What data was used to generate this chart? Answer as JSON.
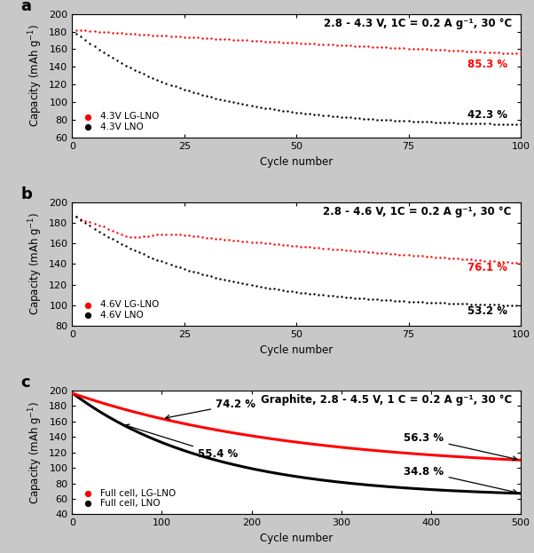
{
  "panel_a": {
    "title": "2.8 - 4.3 V, 1C = 0.2 A g⁻¹, 30 °C",
    "red_label": "4.3V LG-LNO",
    "black_label": "4.3V LNO",
    "red_start": 182,
    "red_end": 155,
    "black_start": 178,
    "black_end": 75,
    "red_pct": "85.3 %",
    "black_pct": "42.3 %",
    "cycles": 100,
    "ylim": [
      60,
      200
    ],
    "yticks": [
      60,
      80,
      100,
      120,
      140,
      160,
      180,
      200
    ],
    "xticks": [
      0,
      25,
      50,
      75,
      100
    ]
  },
  "panel_b": {
    "title": "2.8 - 4.6 V, 1C = 0.2 A g⁻¹, 30 °C",
    "red_label": "4.6V LG-LNO",
    "black_label": "4.6V LNO",
    "red_start": 186,
    "red_end": 141,
    "black_start": 186,
    "black_end": 100,
    "red_pct": "76.1 %",
    "black_pct": "53.2 %",
    "cycles": 100,
    "ylim": [
      80,
      200
    ],
    "yticks": [
      80,
      100,
      120,
      140,
      160,
      180,
      200
    ],
    "xticks": [
      0,
      25,
      50,
      75,
      100
    ]
  },
  "panel_c": {
    "title": "Graphite, 2.8 - 4.5 V, 1 C = 0.2 A g⁻¹, 30 °C",
    "red_label": "Full cell, LG-LNO",
    "black_label": "Full cell, LNO",
    "red_start": 196,
    "red_end": 110,
    "black_start": 196,
    "black_end": 67,
    "red_pct": "56.3 %",
    "black_pct": "34.8 %",
    "red_pct2": "74.2 %",
    "black_pct2": "55.4 %",
    "cycles": 500,
    "ylim": [
      40,
      200
    ],
    "yticks": [
      40,
      60,
      80,
      100,
      120,
      140,
      160,
      180,
      200
    ],
    "xticks": [
      0,
      100,
      200,
      300,
      400,
      500
    ]
  },
  "red_color": "#FF0000",
  "black_color": "#000000",
  "background_color": "#ffffff",
  "fig_background": "#c8c8c8",
  "panel_label_fontsize": 13,
  "title_fontsize": 8.5,
  "legend_fontsize": 7.5,
  "pct_fontsize": 8.5,
  "axis_label_fontsize": 8.5,
  "tick_fontsize": 8
}
